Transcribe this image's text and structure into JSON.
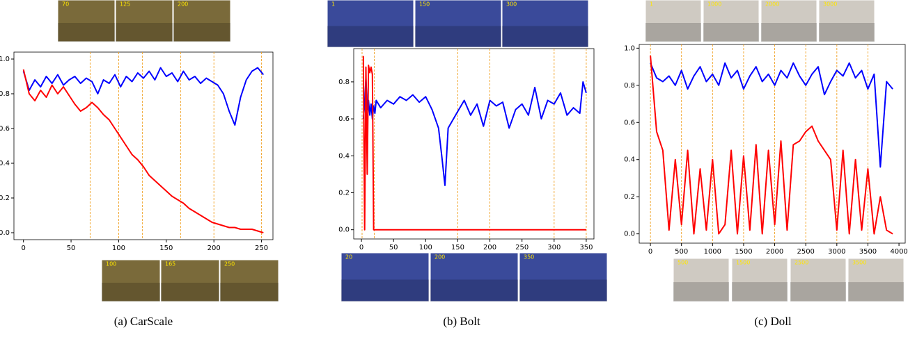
{
  "chart_data": [
    {
      "type": "line",
      "caption": "(a) CarScale",
      "x": [
        0,
        6,
        12,
        18,
        24,
        30,
        36,
        42,
        48,
        54,
        60,
        66,
        72,
        78,
        84,
        90,
        96,
        102,
        108,
        114,
        120,
        126,
        132,
        138,
        144,
        150,
        156,
        162,
        168,
        174,
        180,
        186,
        192,
        198,
        204,
        210,
        216,
        222,
        228,
        234,
        240,
        246,
        252
      ],
      "series": [
        {
          "color": "#0000ff",
          "values": [
            0.93,
            0.82,
            0.88,
            0.84,
            0.9,
            0.86,
            0.91,
            0.85,
            0.88,
            0.9,
            0.86,
            0.89,
            0.87,
            0.8,
            0.88,
            0.86,
            0.91,
            0.84,
            0.9,
            0.87,
            0.92,
            0.89,
            0.93,
            0.88,
            0.95,
            0.9,
            0.92,
            0.87,
            0.93,
            0.88,
            0.9,
            0.86,
            0.89,
            0.87,
            0.85,
            0.8,
            0.7,
            0.62,
            0.78,
            0.88,
            0.93,
            0.95,
            0.91
          ]
        },
        {
          "color": "#ff0000",
          "values": [
            0.94,
            0.8,
            0.76,
            0.82,
            0.78,
            0.85,
            0.8,
            0.84,
            0.79,
            0.74,
            0.7,
            0.72,
            0.75,
            0.72,
            0.68,
            0.65,
            0.6,
            0.55,
            0.5,
            0.45,
            0.42,
            0.38,
            0.33,
            0.3,
            0.27,
            0.24,
            0.21,
            0.19,
            0.17,
            0.14,
            0.12,
            0.1,
            0.08,
            0.06,
            0.05,
            0.04,
            0.03,
            0.03,
            0.02,
            0.02,
            0.02,
            0.01,
            0.0
          ]
        }
      ],
      "xlim": [
        -10,
        262
      ],
      "xticks": [
        0,
        50,
        100,
        150,
        200,
        250
      ],
      "ylim": [
        -0.04,
        1.04
      ],
      "yticks": [
        {
          "value": 0,
          "label": "0.0"
        },
        0.2,
        0.4,
        0.6,
        0.8,
        {
          "value": 1,
          "label": "1.0"
        }
      ],
      "frames_top": [
        70,
        125,
        200
      ],
      "frames_bottom": [
        100,
        165,
        250
      ]
    },
    {
      "type": "line",
      "caption": "(b) Bolt",
      "x": [
        3,
        5,
        7,
        9,
        11,
        13,
        15,
        17,
        19,
        21,
        23,
        30,
        40,
        50,
        60,
        70,
        80,
        90,
        100,
        110,
        120,
        125,
        130,
        135,
        140,
        150,
        160,
        170,
        180,
        190,
        200,
        210,
        220,
        230,
        240,
        250,
        260,
        270,
        280,
        290,
        300,
        310,
        320,
        330,
        340,
        345,
        350
      ],
      "series": [
        {
          "color": "#0000ff",
          "values": [
            0.6,
            0.68,
            0.82,
            0.65,
            0.7,
            0.62,
            0.68,
            0.6,
            0.67,
            0.63,
            0.7,
            0.66,
            0.7,
            0.68,
            0.72,
            0.7,
            0.73,
            0.69,
            0.72,
            0.65,
            0.55,
            0.4,
            0.24,
            0.55,
            0.58,
            0.64,
            0.7,
            0.62,
            0.68,
            0.56,
            0.7,
            0.67,
            0.69,
            0.55,
            0.65,
            0.68,
            0.62,
            0.77,
            0.6,
            0.7,
            0.68,
            0.74,
            0.62,
            0.66,
            0.63,
            0.8,
            0.74
          ]
        },
        {
          "color": "#ff0000",
          "values": [
            0.94,
            0,
            0.88,
            0.3,
            0.89,
            0.85,
            0.88,
            0.84,
            0,
            0,
            0,
            0,
            0,
            0,
            0,
            0,
            0,
            0,
            0,
            0,
            0,
            0,
            0,
            0,
            0,
            0,
            0,
            0,
            0,
            0,
            0,
            0,
            0,
            0,
            0,
            0,
            0,
            0,
            0,
            0,
            0,
            0,
            0,
            0,
            0,
            0,
            0
          ]
        }
      ],
      "xlim": [
        -12,
        362
      ],
      "xticks": [
        0,
        50,
        100,
        150,
        200,
        250,
        300,
        350
      ],
      "ylim": [
        -0.05,
        0.98
      ],
      "yticks": [
        {
          "value": 0,
          "label": "0.0"
        },
        0.2,
        0.4,
        0.6,
        0.8
      ],
      "frames_top": [
        1,
        150,
        300
      ],
      "frames_bottom": [
        20,
        200,
        350
      ]
    },
    {
      "type": "line",
      "caption": "(c) Doll",
      "x": [
        0,
        100,
        200,
        300,
        400,
        500,
        600,
        700,
        800,
        900,
        1000,
        1100,
        1200,
        1300,
        1400,
        1500,
        1600,
        1700,
        1800,
        1900,
        2000,
        2100,
        2200,
        2300,
        2400,
        2500,
        2600,
        2700,
        2800,
        2900,
        3000,
        3100,
        3200,
        3300,
        3400,
        3500,
        3600,
        3700,
        3800,
        3900
      ],
      "series": [
        {
          "color": "#0000ff",
          "values": [
            0.92,
            0.84,
            0.82,
            0.85,
            0.8,
            0.88,
            0.78,
            0.85,
            0.9,
            0.82,
            0.86,
            0.8,
            0.92,
            0.84,
            0.88,
            0.78,
            0.85,
            0.9,
            0.82,
            0.86,
            0.8,
            0.88,
            0.84,
            0.92,
            0.85,
            0.8,
            0.86,
            0.9,
            0.75,
            0.82,
            0.88,
            0.85,
            0.92,
            0.84,
            0.88,
            0.78,
            0.86,
            0.36,
            0.82,
            0.78
          ]
        },
        {
          "color": "#ff0000",
          "values": [
            0.96,
            0.55,
            0.45,
            0.02,
            0.4,
            0.05,
            0.45,
            0.0,
            0.35,
            0.02,
            0.4,
            0.0,
            0.05,
            0.45,
            0.0,
            0.42,
            0.02,
            0.48,
            0.0,
            0.45,
            0.05,
            0.5,
            0.02,
            0.48,
            0.5,
            0.55,
            0.58,
            0.5,
            0.45,
            0.4,
            0.02,
            0.45,
            0.0,
            0.4,
            0.02,
            0.35,
            0.0,
            0.2,
            0.02,
            0.0
          ]
        }
      ],
      "xlim": [
        -180,
        4100
      ],
      "xticks": [
        0,
        500,
        1000,
        1500,
        2000,
        2500,
        3000,
        3500,
        4000
      ],
      "ylim": [
        -0.05,
        1.02
      ],
      "yticks": [
        {
          "value": 0,
          "label": "0.0"
        },
        0.2,
        0.4,
        0.6,
        0.8,
        {
          "value": 1,
          "label": "1.0"
        }
      ],
      "frames_top": [
        1,
        1000,
        2000,
        3000
      ],
      "frames_bottom": [
        500,
        1500,
        2500,
        3500
      ]
    }
  ]
}
